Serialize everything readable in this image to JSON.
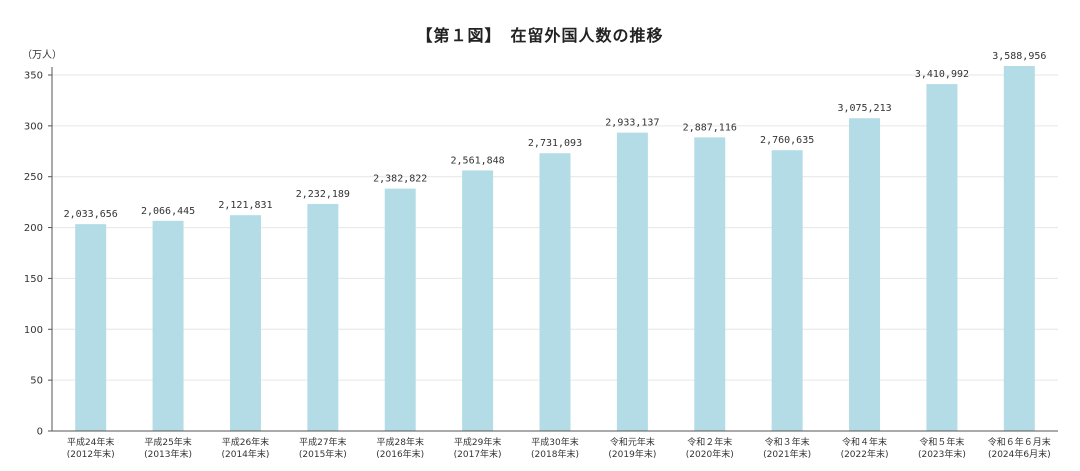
{
  "chart_data": {
    "type": "bar",
    "title": "【第１図】　在留外国人数の推移",
    "unit_label": "（万人）",
    "xlabel": "",
    "ylabel": "",
    "ylim": [
      0,
      350
    ],
    "y_ticks": [
      0,
      50,
      100,
      150,
      200,
      250,
      300,
      350
    ],
    "grid": true,
    "bar_color": "#b4dce6",
    "categories": [
      [
        "平成24年末",
        "(2012年末)"
      ],
      [
        "平成25年末",
        "(2013年末)"
      ],
      [
        "平成26年末",
        "(2014年末)"
      ],
      [
        "平成27年末",
        "(2015年末)"
      ],
      [
        "平成28年末",
        "(2016年末)"
      ],
      [
        "平成29年末",
        "(2017年末)"
      ],
      [
        "平成30年末",
        "(2018年末)"
      ],
      [
        "令和元年末",
        "(2019年末)"
      ],
      [
        "令和２年末",
        "(2020年末)"
      ],
      [
        "令和３年末",
        "(2021年末)"
      ],
      [
        "令和４年末",
        "(2022年末)"
      ],
      [
        "令和５年末",
        "(2023年末)"
      ],
      [
        "令和６年６月末",
        "(2024年6月末)"
      ]
    ],
    "values": [
      2033656,
      2066445,
      2121831,
      2232189,
      2382822,
      2561848,
      2731093,
      2933137,
      2887116,
      2760635,
      3075213,
      3410992,
      3588956
    ],
    "value_labels": [
      "2,033,656",
      "2,066,445",
      "2,121,831",
      "2,232,189",
      "2,382,822",
      "2,561,848",
      "2,731,093",
      "2,933,137",
      "2,887,116",
      "2,760,635",
      "3,075,213",
      "3,410,992",
      "3,588,956"
    ]
  }
}
